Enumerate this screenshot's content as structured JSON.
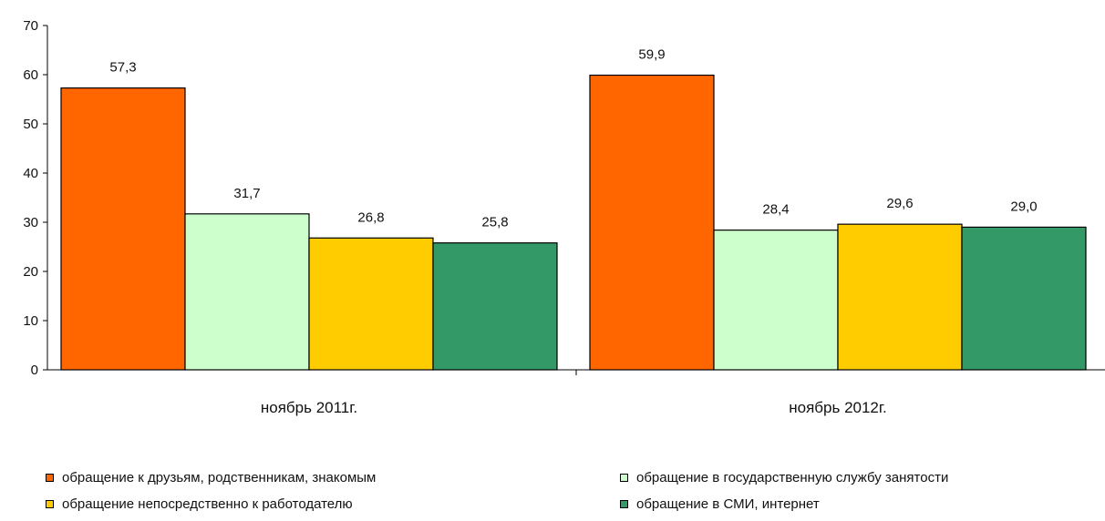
{
  "chart_data": {
    "type": "bar",
    "categories": [
      "ноябрь 2011г.",
      "ноябрь 2012г."
    ],
    "series": [
      {
        "name": "обращение к друзьям, родственникам, знакомым",
        "color": "#ff6600",
        "values": [
          57.3,
          59.9
        ],
        "labels": [
          "57,3",
          "59,9"
        ]
      },
      {
        "name": "обращение в государственную службу занятости",
        "color": "#ccffcc",
        "values": [
          31.7,
          28.4
        ],
        "labels": [
          "31,7",
          "28,4"
        ]
      },
      {
        "name": "обращение непосредственно к работодателю",
        "color": "#ffcc00",
        "values": [
          26.8,
          29.6
        ],
        "labels": [
          "26,8",
          "29,6"
        ]
      },
      {
        "name": "обращение в СМИ, интернет",
        "color": "#339966",
        "values": [
          25.8,
          29.0
        ],
        "labels": [
          "25,8",
          "29,0"
        ]
      }
    ],
    "ylim": [
      0,
      70
    ],
    "yticks": [
      0,
      10,
      20,
      30,
      40,
      50,
      60,
      70
    ],
    "grid": false,
    "legend_position": "bottom"
  }
}
